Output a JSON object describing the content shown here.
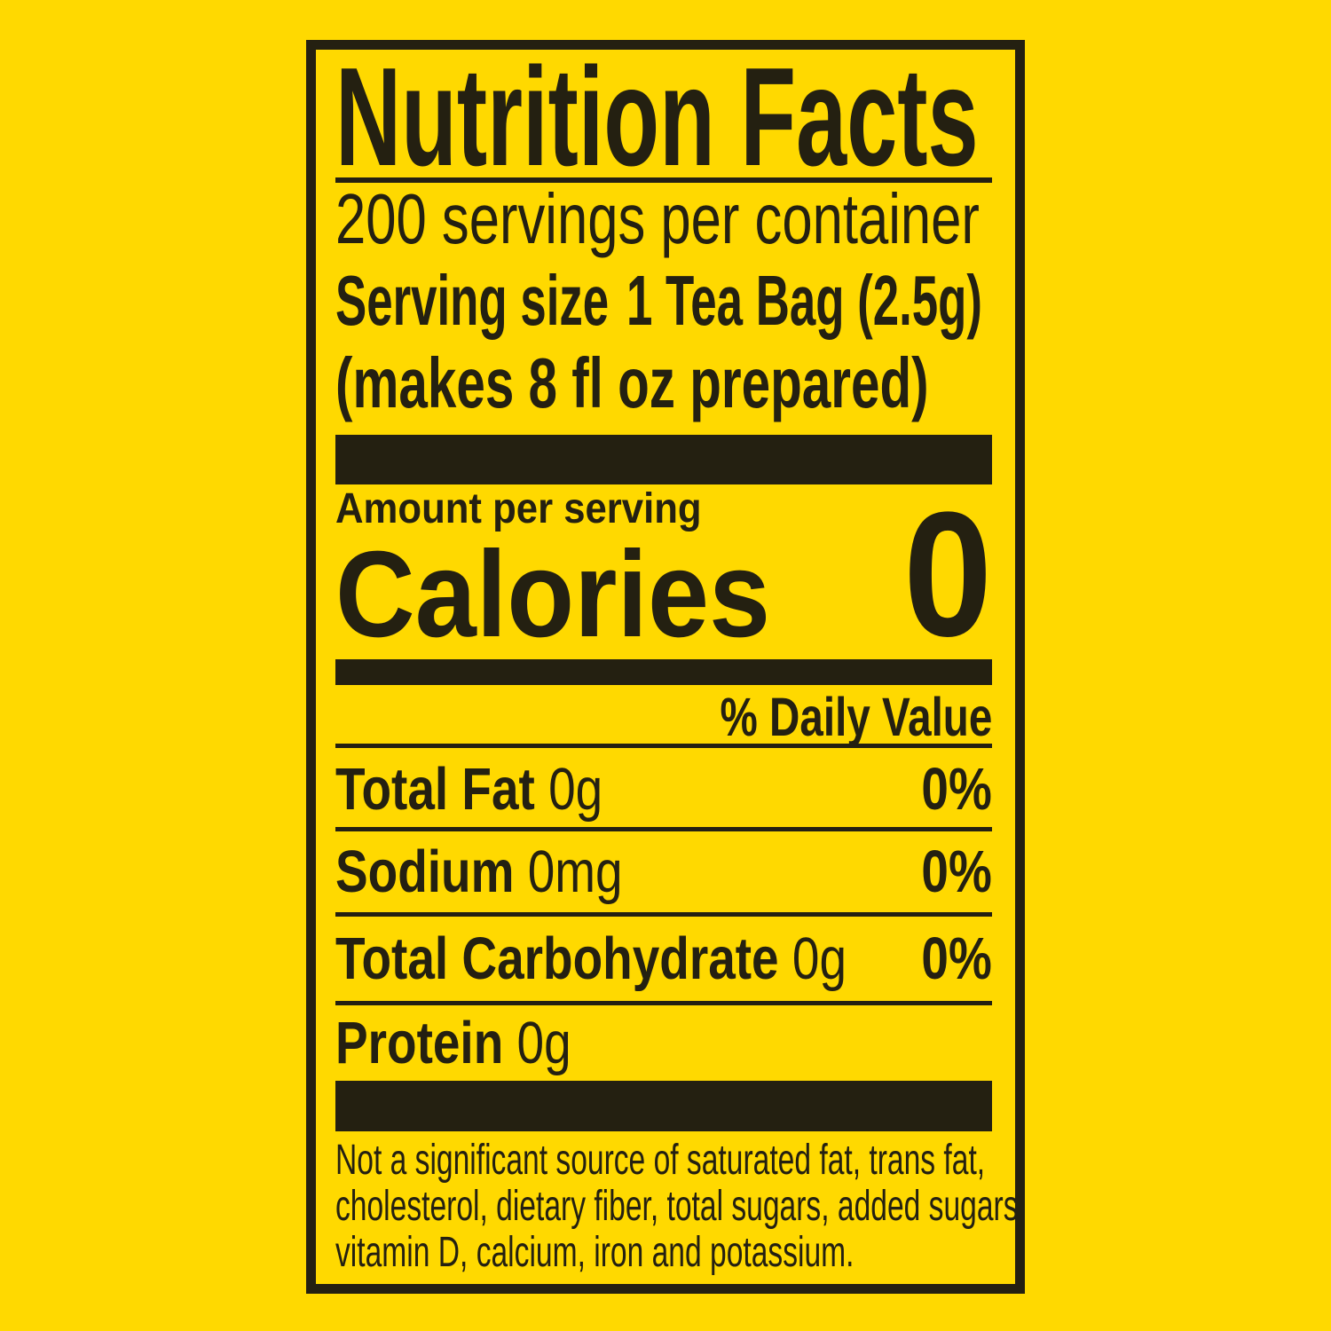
{
  "label": {
    "title": "Nutrition Facts",
    "servings_per_container": "200 servings per container",
    "serving_size_label": "Serving size",
    "serving_size_value": "1 Tea Bag (2.5g)",
    "serving_size_note": "(makes 8 fl oz prepared)",
    "amount_per_serving": "Amount per serving",
    "calories_label": "Calories",
    "calories_value": "0",
    "daily_value_header": "% Daily Value",
    "rows": [
      {
        "name": "Total Fat",
        "amount": "0g",
        "dv": "0%"
      },
      {
        "name": "Sodium",
        "amount": "0mg",
        "dv": "0%"
      },
      {
        "name": "Total Carbohydrate",
        "amount": "0g",
        "dv": "0%"
      },
      {
        "name": "Protein",
        "amount": "0g",
        "dv": ""
      }
    ],
    "footnote_lines": [
      "Not a significant source of saturated fat, trans fat,",
      "cholesterol, dietary fiber, total sugars, added sugars,",
      "vitamin D, calcium, iron and potassium."
    ],
    "colors": {
      "background": "#FFD900",
      "ink": "#242011"
    }
  }
}
